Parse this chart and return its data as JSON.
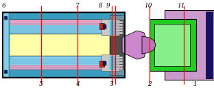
{
  "fig_width": 3.12,
  "fig_height": 1.32,
  "dpi": 100,
  "bg_color": "#ffffff",
  "colors": {
    "black": "#000000",
    "cyan_light": "#87CEEB",
    "cyan_mid": "#5BB8D4",
    "cyan_dark": "#3A9DBF",
    "yellow_light": "#FFFFAA",
    "pink_light": "#E8A0C0",
    "violet_light": "#CC88CC",
    "violet_mid": "#BB77BB",
    "green_bright": "#22CC22",
    "green_light": "#88EE88",
    "gray_light": "#C8C8C8",
    "gray_mid": "#909090",
    "gray_dark": "#606060",
    "blue_dark": "#000088",
    "navy": "#111166",
    "red": "#FF0000",
    "purple_light": "#CC99CC",
    "teal": "#008888",
    "white": "#FFFFFF",
    "blue_steel": "#4488BB",
    "orange_red": "#CC2200"
  }
}
